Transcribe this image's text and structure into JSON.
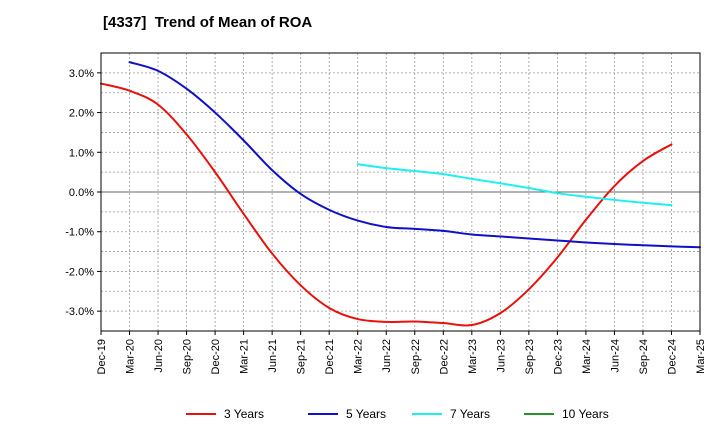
{
  "chart_data": {
    "type": "line",
    "title": "[4337]  Trend of Mean of ROA",
    "xlabel": "",
    "ylabel": "",
    "ylim": [
      -3.5,
      3.5
    ],
    "yticks": [
      3.0,
      2.0,
      1.0,
      0.0,
      -1.0,
      -2.0,
      -3.0
    ],
    "ytick_labels": [
      "3.0%",
      "2.0%",
      "1.0%",
      "0.0%",
      "-1.0%",
      "-2.0%",
      "-3.0%"
    ],
    "x_tick_labels": [
      "Dec-19",
      "Mar-20",
      "Jun-20",
      "Sep-20",
      "Dec-20",
      "Mar-21",
      "Jun-21",
      "Sep-21",
      "Dec-21",
      "Mar-22",
      "Jun-22",
      "Sep-22",
      "Dec-22",
      "Mar-23",
      "Jun-23",
      "Sep-23",
      "Dec-23",
      "Mar-24",
      "Jun-24",
      "Sep-24",
      "Dec-24",
      "Mar-25"
    ],
    "legend_position": "bottom",
    "grid": true,
    "series": [
      {
        "name": "3 Years",
        "color": "#e8120c",
        "start_index": 0,
        "values": [
          2.73,
          2.55,
          2.2,
          1.45,
          0.5,
          -0.55,
          -1.55,
          -2.35,
          -2.92,
          -3.2,
          -3.27,
          -3.26,
          -3.3,
          -3.35,
          -3.05,
          -2.45,
          -1.65,
          -0.7,
          0.15,
          0.78,
          1.2
        ]
      },
      {
        "name": "5 Years",
        "color": "#1010c8",
        "start_index": 1,
        "values": [
          3.27,
          3.05,
          2.6,
          2.0,
          1.3,
          0.55,
          -0.05,
          -0.45,
          -0.72,
          -0.88,
          -0.93,
          -0.98,
          -1.07,
          -1.12,
          -1.17,
          -1.22,
          -1.27,
          -1.31,
          -1.34,
          -1.37,
          -1.39
        ]
      },
      {
        "name": "7 Years",
        "color": "#1cf0f0",
        "start_index": 9,
        "values": [
          0.7,
          0.6,
          0.53,
          0.45,
          0.33,
          0.22,
          0.1,
          -0.03,
          -0.12,
          -0.2,
          -0.27,
          -0.33
        ]
      },
      {
        "name": "10 Years",
        "color": "#2a922a",
        "start_index": 0,
        "values": []
      }
    ]
  }
}
